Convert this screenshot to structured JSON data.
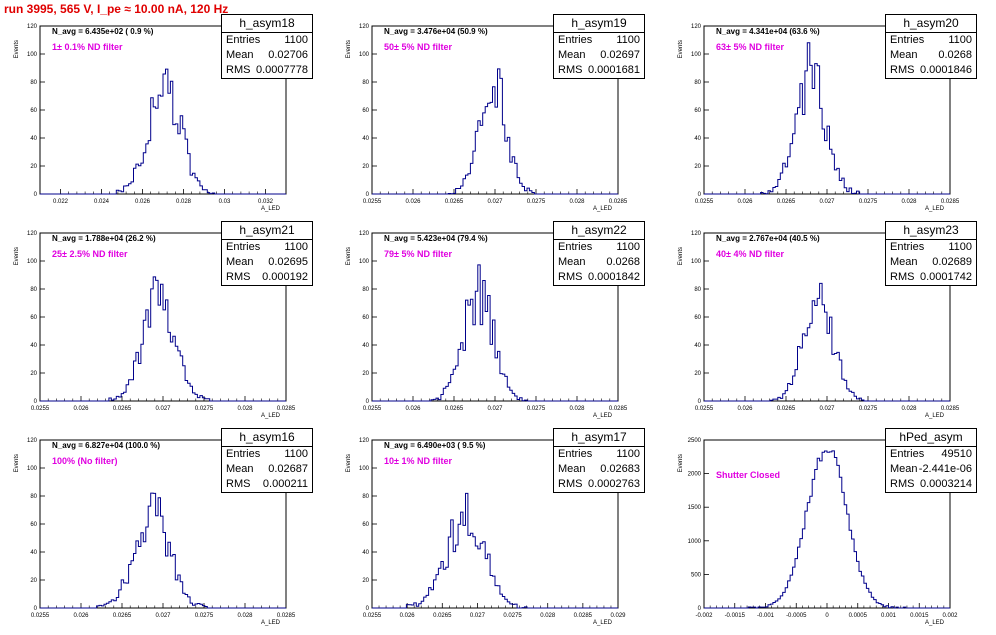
{
  "header": {
    "title": "run 3995,   565 V, I_pe ≈ 10.00 nA, 120 Hz"
  },
  "colors": {
    "title": "#e00000",
    "histogram": "#00008b",
    "annotation": "#e000e0"
  },
  "stat_labels": {
    "entries": "Entries",
    "mean": "Mean",
    "rms": "RMS"
  },
  "axis_labels": {
    "y": "Events",
    "x": "A_LED"
  },
  "chart_data": [
    {
      "type": "histogram",
      "name": "h_asym18",
      "stats": {
        "entries": "1100",
        "mean": "0.02706",
        "rms": "0.0007778"
      },
      "navg": "N_avg = 6.435e+02 ( 0.9 %)",
      "filter": "1± 0.1% ND filter",
      "xlim": [
        0.021,
        0.033
      ],
      "ylim": [
        0,
        120
      ],
      "xticks": [
        "0.022",
        "0.024",
        "0.026",
        "0.028",
        "0.03",
        "0.032"
      ],
      "xtick_values": [
        0.022,
        0.024,
        0.026,
        0.028,
        0.03,
        0.032
      ],
      "yticks": [
        "0",
        "20",
        "40",
        "60",
        "80",
        "100",
        "120"
      ],
      "ytick_values": [
        0,
        20,
        40,
        60,
        80,
        100,
        120
      ],
      "mean": 0.02706,
      "sigma": 0.0007778,
      "peak": 80
    },
    {
      "type": "histogram",
      "name": "h_asym19",
      "stats": {
        "entries": "1100",
        "mean": "0.02697",
        "rms": "0.0001681"
      },
      "navg": "N_avg = 3.476e+04 (50.9 %)",
      "filter": "50± 5% ND filter",
      "xlim": [
        0.0255,
        0.0285
      ],
      "ylim": [
        0,
        120
      ],
      "xticks": [
        "0.0255",
        "0.026",
        "0.0265",
        "0.027",
        "0.0275",
        "0.028",
        "0.0285"
      ],
      "xtick_values": [
        0.0255,
        0.026,
        0.0265,
        0.027,
        0.0275,
        0.028,
        0.0285
      ],
      "yticks": [
        "0",
        "20",
        "40",
        "60",
        "80",
        "100",
        "120"
      ],
      "ytick_values": [
        0,
        20,
        40,
        60,
        80,
        100,
        120
      ],
      "mean": 0.02697,
      "sigma": 0.0001681,
      "peak": 78
    },
    {
      "type": "histogram",
      "name": "h_asym20",
      "stats": {
        "entries": "1100",
        "mean": "0.0268",
        "rms": "0.0001846"
      },
      "navg": "N_avg = 4.341e+04 (63.6 %)",
      "filter": "63± 5% ND filter",
      "xlim": [
        0.0255,
        0.0285
      ],
      "ylim": [
        0,
        120
      ],
      "xticks": [
        "0.0255",
        "0.026",
        "0.0265",
        "0.027",
        "0.0275",
        "0.028",
        "0.0285"
      ],
      "xtick_values": [
        0.0255,
        0.026,
        0.0265,
        0.027,
        0.0275,
        0.028,
        0.0285
      ],
      "yticks": [
        "0",
        "20",
        "40",
        "60",
        "80",
        "100",
        "120"
      ],
      "ytick_values": [
        0,
        20,
        40,
        60,
        80,
        100,
        120
      ],
      "mean": 0.0268,
      "sigma": 0.0001846,
      "peak": 85
    },
    {
      "type": "histogram",
      "name": "h_asym21",
      "stats": {
        "entries": "1100",
        "mean": "0.02695",
        "rms": "0.000192"
      },
      "navg": "N_avg = 1.788e+04 (26.2 %)",
      "filter": "25± 2.5% ND filter",
      "xlim": [
        0.0255,
        0.0285
      ],
      "ylim": [
        0,
        120
      ],
      "xticks": [
        "0.0255",
        "0.026",
        "0.0265",
        "0.027",
        "0.0275",
        "0.028",
        "0.0285"
      ],
      "xtick_values": [
        0.0255,
        0.026,
        0.0265,
        0.027,
        0.0275,
        0.028,
        0.0285
      ],
      "yticks": [
        "0",
        "20",
        "40",
        "60",
        "80",
        "100",
        "120"
      ],
      "ytick_values": [
        0,
        20,
        40,
        60,
        80,
        100,
        120
      ],
      "mean": 0.02695,
      "sigma": 0.000192,
      "peak": 76
    },
    {
      "type": "histogram",
      "name": "h_asym22",
      "stats": {
        "entries": "1100",
        "mean": "0.0268",
        "rms": "0.0001842"
      },
      "navg": "N_avg = 5.423e+04 (79.4 %)",
      "filter": "79± 5% ND filter",
      "xlim": [
        0.0255,
        0.0285
      ],
      "ylim": [
        0,
        120
      ],
      "xticks": [
        "0.0255",
        "0.026",
        "0.0265",
        "0.027",
        "0.0275",
        "0.028",
        "0.0285"
      ],
      "xtick_values": [
        0.0255,
        0.026,
        0.0265,
        0.027,
        0.0275,
        0.028,
        0.0285
      ],
      "yticks": [
        "0",
        "20",
        "40",
        "60",
        "80",
        "100",
        "120"
      ],
      "ytick_values": [
        0,
        20,
        40,
        60,
        80,
        100,
        120
      ],
      "mean": 0.0268,
      "sigma": 0.0001842,
      "peak": 76
    },
    {
      "type": "histogram",
      "name": "h_asym23",
      "stats": {
        "entries": "1100",
        "mean": "0.02689",
        "rms": "0.0001742"
      },
      "navg": "N_avg = 2.767e+04 (40.5 %)",
      "filter": "40± 4% ND filter",
      "xlim": [
        0.0255,
        0.0285
      ],
      "ylim": [
        0,
        120
      ],
      "xticks": [
        "0.0255",
        "0.026",
        "0.0265",
        "0.027",
        "0.0275",
        "0.028",
        "0.0285"
      ],
      "xtick_values": [
        0.0255,
        0.026,
        0.0265,
        0.027,
        0.0275,
        0.028,
        0.0285
      ],
      "yticks": [
        "0",
        "20",
        "40",
        "60",
        "80",
        "100",
        "120"
      ],
      "ytick_values": [
        0,
        20,
        40,
        60,
        80,
        100,
        120
      ],
      "mean": 0.02689,
      "sigma": 0.0001742,
      "peak": 78
    },
    {
      "type": "histogram",
      "name": "h_asym16",
      "stats": {
        "entries": "1100",
        "mean": "0.02687",
        "rms": "0.000211"
      },
      "navg": "N_avg = 6.827e+04 (100.0 %)",
      "filter": "100% (No filter)",
      "xlim": [
        0.0255,
        0.0285
      ],
      "ylim": [
        0,
        120
      ],
      "xticks": [
        "0.0255",
        "0.026",
        "0.0265",
        "0.027",
        "0.0275",
        "0.028",
        "0.0285"
      ],
      "xtick_values": [
        0.0255,
        0.026,
        0.0265,
        0.027,
        0.0275,
        0.028,
        0.0285
      ],
      "yticks": [
        "0",
        "20",
        "40",
        "60",
        "80",
        "100",
        "120"
      ],
      "ytick_values": [
        0,
        20,
        40,
        60,
        80,
        100,
        120
      ],
      "mean": 0.02687,
      "sigma": 0.000211,
      "peak": 66
    },
    {
      "type": "histogram",
      "name": "h_asym17",
      "stats": {
        "entries": "1100",
        "mean": "0.02683",
        "rms": "0.0002763"
      },
      "navg": "N_avg = 6.490e+03 ( 9.5 %)",
      "filter": "10± 1% ND filter",
      "xlim": [
        0.0255,
        0.029
      ],
      "ylim": [
        0,
        120
      ],
      "xticks": [
        "0.0255",
        "0.026",
        "0.0265",
        "0.027",
        "0.0275",
        "0.028",
        "0.0285",
        "0.029"
      ],
      "xtick_values": [
        0.0255,
        0.026,
        0.0265,
        0.027,
        0.0275,
        0.028,
        0.0285,
        0.029
      ],
      "yticks": [
        "0",
        "20",
        "40",
        "60",
        "80",
        "100",
        "120"
      ],
      "ytick_values": [
        0,
        20,
        40,
        60,
        80,
        100,
        120
      ],
      "mean": 0.02683,
      "sigma": 0.0002763,
      "peak": 64
    },
    {
      "type": "histogram",
      "name": "hPed_asym",
      "stats": {
        "entries": "49510",
        "mean": "-2.441e-06",
        "rms": "0.0003214"
      },
      "navg": "",
      "filter": "Shutter Closed",
      "xlim": [
        -0.002,
        0.002
      ],
      "ylim": [
        0,
        2500
      ],
      "xticks": [
        "-0.002",
        "-0.0015",
        "-0.001",
        "-0.0005",
        "0",
        "0.0005",
        "0.001",
        "0.0015",
        "0.002"
      ],
      "xtick_values": [
        -0.002,
        -0.0015,
        -0.001,
        -0.0005,
        0,
        0.0005,
        0.001,
        0.0015,
        0.002
      ],
      "yticks": [
        "0",
        "500",
        "1000",
        "1500",
        "2000",
        "2500"
      ],
      "ytick_values": [
        0,
        500,
        1000,
        1500,
        2000,
        2500
      ],
      "mean": -2.441e-06,
      "sigma": 0.0003214,
      "peak": 2400
    }
  ]
}
